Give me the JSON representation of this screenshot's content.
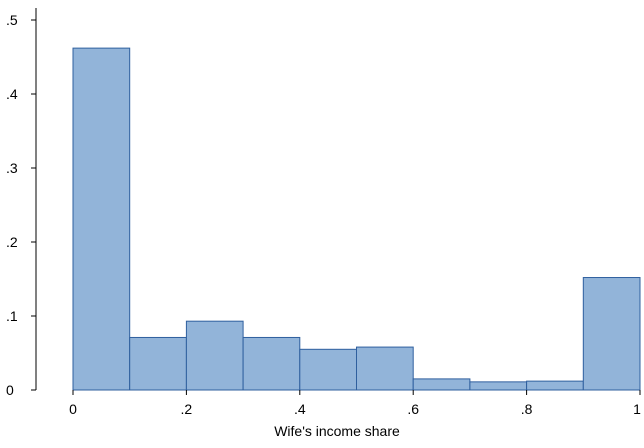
{
  "chart_data": {
    "type": "bar",
    "subtype": "histogram",
    "title": "",
    "xlabel": "Wife's income share",
    "ylabel": "",
    "xlim": [
      0,
      1
    ],
    "ylim": [
      0,
      0.5
    ],
    "x_ticks": [
      {
        "value": 0,
        "label": "0"
      },
      {
        "value": 0.2,
        "label": ".2"
      },
      {
        "value": 0.4,
        "label": ".4"
      },
      {
        "value": 0.6,
        "label": ".6"
      },
      {
        "value": 0.8,
        "label": ".8"
      },
      {
        "value": 1,
        "label": "1"
      }
    ],
    "y_ticks": [
      {
        "value": 0,
        "label": "0"
      },
      {
        "value": 0.1,
        "label": ".1"
      },
      {
        "value": 0.2,
        "label": ".2"
      },
      {
        "value": 0.3,
        "label": ".3"
      },
      {
        "value": 0.4,
        "label": ".4"
      },
      {
        "value": 0.5,
        "label": ".5"
      }
    ],
    "bins": [
      {
        "start": 0.0,
        "end": 0.1,
        "value": 0.462
      },
      {
        "start": 0.1,
        "end": 0.2,
        "value": 0.071
      },
      {
        "start": 0.2,
        "end": 0.3,
        "value": 0.093
      },
      {
        "start": 0.3,
        "end": 0.4,
        "value": 0.071
      },
      {
        "start": 0.4,
        "end": 0.5,
        "value": 0.055
      },
      {
        "start": 0.5,
        "end": 0.6,
        "value": 0.058
      },
      {
        "start": 0.6,
        "end": 0.7,
        "value": 0.015
      },
      {
        "start": 0.7,
        "end": 0.8,
        "value": 0.011
      },
      {
        "start": 0.8,
        "end": 0.9,
        "value": 0.012
      },
      {
        "start": 0.9,
        "end": 1.0,
        "value": 0.152
      }
    ],
    "bar_fill": "#92b4d9",
    "bar_stroke": "#2f5f9e",
    "axis_color": "#000000",
    "grid": false,
    "legend": "none"
  }
}
